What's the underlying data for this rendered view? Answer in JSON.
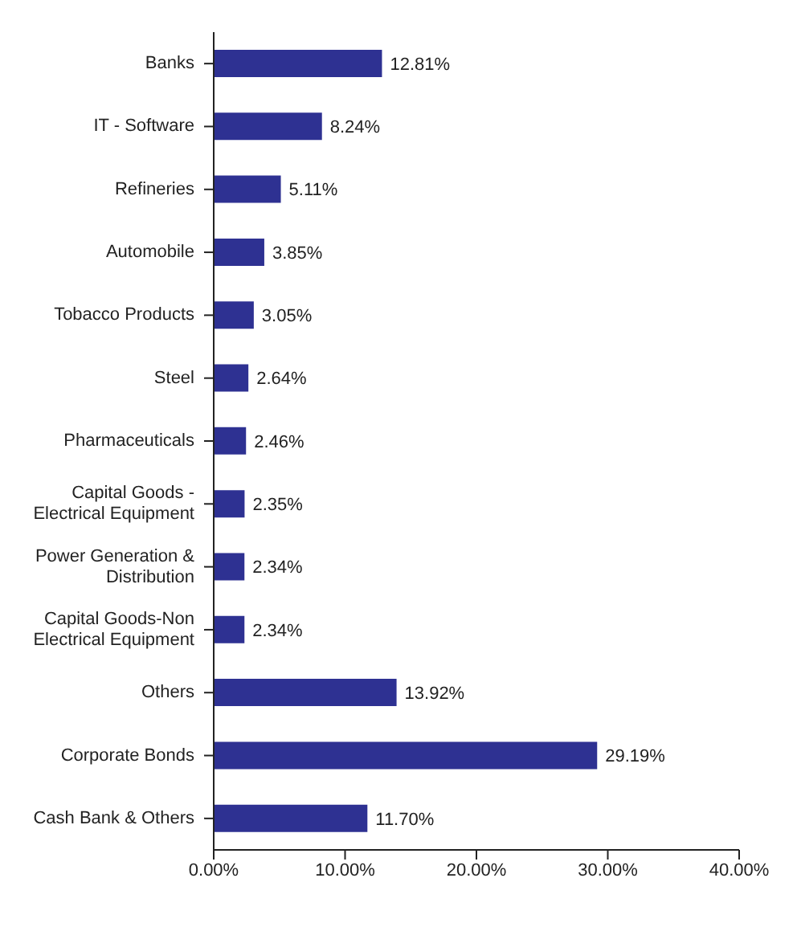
{
  "chart_data": {
    "type": "bar",
    "orientation": "horizontal",
    "categories": [
      "Banks",
      "IT - Software",
      "Refineries",
      "Automobile",
      "Tobacco Products",
      "Steel",
      "Pharmaceuticals",
      "Capital Goods - Electrical Equipment",
      "Power Generation & Distribution",
      "Capital Goods-Non Electrical Equipment",
      "Others",
      "Corporate Bonds",
      "Cash Bank & Others"
    ],
    "values": [
      12.81,
      8.24,
      5.11,
      3.85,
      3.05,
      2.64,
      2.46,
      2.35,
      2.34,
      2.34,
      13.92,
      29.19,
      11.7
    ],
    "value_labels": [
      "12.81%",
      "8.24%",
      "5.11%",
      "3.85%",
      "3.05%",
      "2.64%",
      "2.46%",
      "2.35%",
      "2.34%",
      "2.34%",
      "13.92%",
      "29.19%",
      "11.70%"
    ],
    "color": "#2e3192",
    "xlim": [
      0,
      40
    ],
    "xticks": [
      {
        "value": 0,
        "label": "0.00%"
      },
      {
        "value": 10,
        "label": "10.00%"
      },
      {
        "value": 20,
        "label": "20.00%"
      },
      {
        "value": 30,
        "label": "30.00%"
      },
      {
        "value": 40,
        "label": "40.00%"
      }
    ],
    "grid": false,
    "legend": false
  }
}
